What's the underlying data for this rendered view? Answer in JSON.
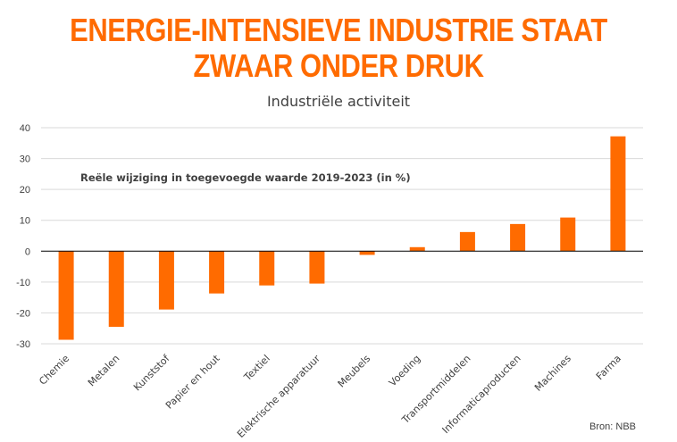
{
  "headline": {
    "line1": "ENERGIE-INTENSIEVE INDUSTRIE STAAT",
    "line2": "ZWAAR ONDER DRUK"
  },
  "source": "Bron: NBB",
  "colors": {
    "bar": "#ff6b00",
    "headline": "#ff6b00",
    "grid": "#d9d9d9",
    "axis": "#000000",
    "text": "#404040"
  },
  "chart_data": {
    "type": "bar",
    "title": "Industriële activiteit",
    "annotation": "Reële wijziging in toegevoegde waarde 2019-2023 (in %)",
    "xlabel": "",
    "ylabel": "",
    "ylim": [
      -30,
      40
    ],
    "yticks": [
      40,
      30,
      20,
      10,
      0,
      -10,
      -20,
      -30
    ],
    "grid": true,
    "categories": [
      "Chemie",
      "Metalen",
      "Kunststof",
      "Papier en hout",
      "Textiel",
      "Elektrische apparatuur",
      "Meubels",
      "Voeding",
      "Transportmiddelen",
      "Informaticaproducten",
      "Machines",
      "Farma"
    ],
    "values": [
      -28.7,
      -24.5,
      -18.9,
      -13.7,
      -11.1,
      -10.5,
      -1.2,
      1.3,
      6.2,
      8.8,
      10.9,
      37.2
    ]
  }
}
